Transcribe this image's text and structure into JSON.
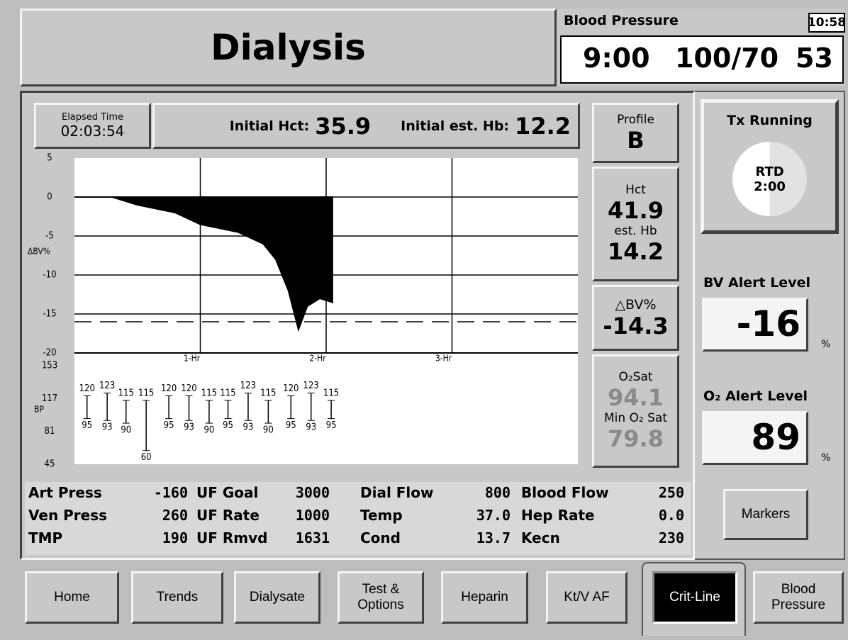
{
  "header": {
    "title": "Dialysis",
    "bp_label": "Blood Pressure",
    "clock": "10:58",
    "bp_time": "9:00",
    "bp_value": "100/70",
    "bp_pulse": "53"
  },
  "elapsed": {
    "label": "Elapsed Time",
    "value": "02:03:54"
  },
  "initial": {
    "hct_label": "Initial Hct:",
    "hct": "35.9",
    "hb_label": "Initial est. Hb:",
    "hb": "12.2"
  },
  "side": {
    "profile_label": "Profile",
    "profile": "B",
    "hct_label": "Hct",
    "hct": "41.9",
    "hb_label": "est. Hb",
    "hb": "14.2",
    "dbv_label": "△BV%",
    "dbv": "-14.3",
    "o2_label": "O₂Sat",
    "o2": "94.1",
    "min_o2_label": "Min O₂ Sat",
    "min_o2": "79.8"
  },
  "right": {
    "tx": "Tx Running",
    "rtd_label": "RTD",
    "rtd": "2:00",
    "bv_alert_label": "BV Alert Level",
    "bv_alert": "-16",
    "bv_unit": "%",
    "o2_alert_label": "O₂ Alert Level",
    "o2_alert": "89",
    "o2_unit": "%",
    "markers": "Markers"
  },
  "params": [
    [
      {
        "label": "Art Press",
        "value": "-160"
      },
      {
        "label": "UF Goal",
        "value": "3000"
      },
      {
        "label": "Dial Flow",
        "value": "800"
      },
      {
        "label": "Blood Flow",
        "value": "250"
      }
    ],
    [
      {
        "label": "Ven Press",
        "value": "260"
      },
      {
        "label": "UF Rate",
        "value": "1000"
      },
      {
        "label": "Temp",
        "value": "37.0"
      },
      {
        "label": "Hep Rate",
        "value": "0.0"
      }
    ],
    [
      {
        "label": "TMP",
        "value": "190"
      },
      {
        "label": "UF Rmvd",
        "value": "1631"
      },
      {
        "label": "Cond",
        "value": "13.7"
      },
      {
        "label": "Kecn",
        "value": "230"
      }
    ]
  ],
  "tabs": [
    "Home",
    "Trends",
    "Dialysate",
    "Test & Options",
    "Heparin",
    "Kt/V AF",
    "Crit-Line",
    "Blood Pressure"
  ],
  "chart_data": [
    {
      "type": "area",
      "ylabel": "ΔBV%",
      "ylim": [
        -20,
        5
      ],
      "yticks": [
        5,
        0,
        -5,
        -10,
        -15,
        -20
      ],
      "xlim": [
        0,
        4
      ],
      "xticks": [
        {
          "value": 1,
          "label": "1-Hr"
        },
        {
          "value": 2,
          "label": "2-Hr"
        },
        {
          "value": 3,
          "label": "3-Hr"
        }
      ],
      "alert_line": -16,
      "color": "#000000",
      "x": [
        0,
        0.3,
        0.5,
        0.8,
        1.0,
        1.3,
        1.5,
        1.6,
        1.7,
        1.78,
        1.85,
        1.95,
        2.05
      ],
      "values": [
        0,
        0,
        -1,
        -2,
        -3.5,
        -4.5,
        -6,
        -8,
        -12,
        -17,
        -14,
        -13,
        -13.5
      ]
    },
    {
      "type": "bp",
      "ylabel": "BP",
      "ylim": [
        45,
        153
      ],
      "yticks": [
        153,
        117,
        81,
        45
      ],
      "xlim": [
        0,
        4
      ],
      "x": [
        0.1,
        0.26,
        0.41,
        0.57,
        0.75,
        0.91,
        1.07,
        1.22,
        1.38,
        1.54,
        1.72,
        1.88,
        2.04
      ],
      "systolic": [
        120,
        123,
        115,
        115,
        120,
        120,
        115,
        115,
        123,
        115,
        120,
        123,
        115
      ],
      "diastolic": [
        95,
        93,
        90,
        60,
        95,
        93,
        90,
        95,
        93,
        90,
        95,
        93,
        95
      ]
    }
  ]
}
